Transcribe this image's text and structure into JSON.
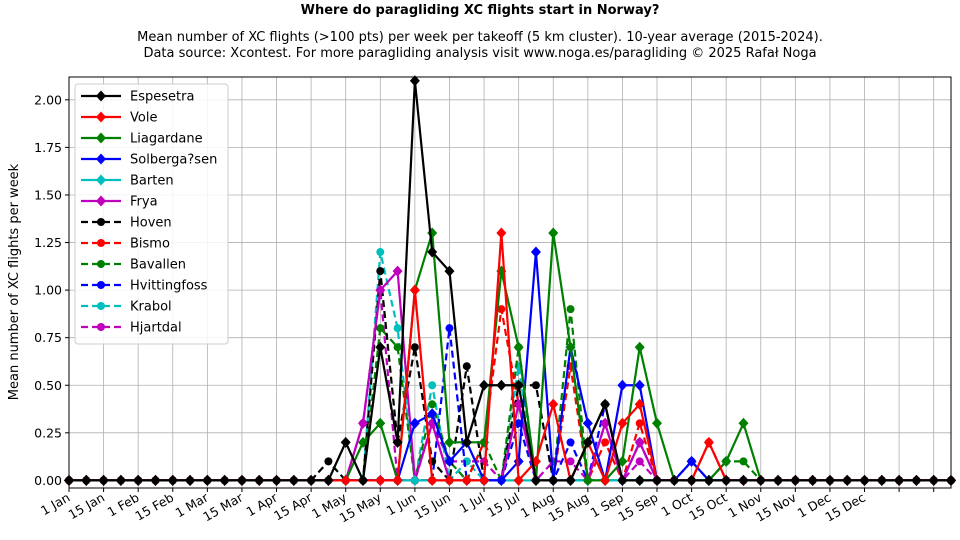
{
  "chart_data": {
    "type": "line",
    "title": "Where do paragliding XC flights start in Norway?",
    "subtitle_lines": [
      "Mean number of XC flights (>100 pts) per week per takeoff (5 km cluster). 10-year average (2015-2024).",
      "Data source: Xcontest. For more paragliding analysis visit www.noga.es/paragliding © 2025 Rafał Noga"
    ],
    "xlabel": "",
    "ylabel": "Mean number of XC flights per week",
    "xlim": [
      0,
      51
    ],
    "ylim": [
      -0.04,
      2.12
    ],
    "y_ticks": [
      0.0,
      0.25,
      0.5,
      0.75,
      1.0,
      1.25,
      1.5,
      1.75,
      2.0
    ],
    "y_tick_labels": [
      "0.00",
      "0.25",
      "0.50",
      "0.75",
      "1.00",
      "1.25",
      "1.50",
      "1.75",
      "2.00"
    ],
    "x_tick_positions": [
      0,
      2,
      4,
      6,
      8,
      10,
      12,
      14,
      16,
      18,
      20,
      22,
      24,
      26,
      28,
      30,
      32,
      34,
      36,
      38,
      40,
      42,
      44,
      46,
      48,
      50
    ],
    "x_tick_labels": [
      "1 Jan",
      "15 Jan",
      "1 Feb",
      "15 Feb",
      "1 Mar",
      "15 Mar",
      "1 Apr",
      "15 Apr",
      "1 May",
      "15 May",
      "1 Jun",
      "15 Jun",
      "1 Jul",
      "15 Jul",
      "1 Aug",
      "15 Aug",
      "1 Sep",
      "15 Sep",
      "1 Oct",
      "15 Oct",
      "1 Nov",
      "15 Nov",
      "1 Dec",
      "15 Dec",
      "",
      ""
    ],
    "x_weeks": [
      0,
      1,
      2,
      3,
      4,
      5,
      6,
      7,
      8,
      9,
      10,
      11,
      12,
      13,
      14,
      15,
      16,
      17,
      18,
      19,
      20,
      21,
      22,
      23,
      24,
      25,
      26,
      27,
      28,
      29,
      30,
      31,
      32,
      33,
      34,
      35,
      36,
      37,
      38,
      39,
      40,
      41,
      42,
      43,
      44,
      45,
      46,
      47,
      48,
      49,
      50,
      51
    ],
    "grid": true,
    "legend_position": "top-left",
    "series": [
      {
        "name": "Espesetra",
        "color": "#000000",
        "style": "solid",
        "marker": "diamond",
        "values": [
          0,
          0,
          0,
          0,
          0,
          0,
          0,
          0,
          0,
          0,
          0,
          0,
          0,
          0,
          0,
          0,
          0.2,
          0,
          0.7,
          0.2,
          2.1,
          1.2,
          1.1,
          0.2,
          0.5,
          0.5,
          0.5,
          0,
          0,
          0,
          0.2,
          0.4,
          0,
          0,
          0,
          0,
          0,
          0,
          0,
          0,
          0,
          0,
          0,
          0,
          0,
          0,
          0,
          0,
          0,
          0,
          0,
          0
        ]
      },
      {
        "name": "Vole",
        "color": "#ff0000",
        "style": "solid",
        "marker": "diamond",
        "values": [
          0,
          0,
          0,
          0,
          0,
          0,
          0,
          0,
          0,
          0,
          0,
          0,
          0,
          0,
          0,
          0,
          0,
          0,
          0,
          0,
          1.0,
          0,
          0,
          0,
          0,
          1.3,
          0,
          0.1,
          0.4,
          0,
          0.2,
          0,
          0.3,
          0.4,
          0,
          0,
          0,
          0.2,
          0,
          0,
          0,
          0,
          0,
          0,
          0,
          0,
          0,
          0,
          0,
          0,
          0,
          0
        ]
      },
      {
        "name": "Liagardane",
        "color": "#008000",
        "style": "solid",
        "marker": "diamond",
        "values": [
          0,
          0,
          0,
          0,
          0,
          0,
          0,
          0,
          0,
          0,
          0,
          0,
          0,
          0,
          0,
          0,
          0,
          0.2,
          0.3,
          0,
          1.0,
          1.3,
          0.2,
          0.2,
          0.2,
          1.1,
          0.7,
          0,
          1.3,
          0.7,
          0,
          0,
          0.1,
          0.7,
          0.3,
          0,
          0,
          0,
          0.1,
          0.3,
          0,
          0,
          0,
          0,
          0,
          0,
          0,
          0,
          0,
          0,
          0,
          0
        ]
      },
      {
        "name": "Solberga?sen",
        "color": "#0000ff",
        "style": "solid",
        "marker": "diamond",
        "values": [
          0,
          0,
          0,
          0,
          0,
          0,
          0,
          0,
          0,
          0,
          0,
          0,
          0,
          0,
          0,
          0,
          0,
          0,
          0,
          0,
          0.3,
          0.35,
          0.1,
          0.2,
          0,
          0,
          0.1,
          1.2,
          0,
          0.7,
          0.3,
          0,
          0.5,
          0.5,
          0,
          0,
          0.1,
          0,
          0,
          0,
          0,
          0,
          0,
          0,
          0,
          0,
          0,
          0,
          0,
          0,
          0,
          0
        ]
      },
      {
        "name": "Barten",
        "color": "#00bfbf",
        "style": "solid",
        "marker": "diamond",
        "values": [
          0,
          0,
          0,
          0,
          0,
          0,
          0,
          0,
          0,
          0,
          0,
          0,
          0,
          0,
          0,
          0,
          0,
          0,
          0,
          0,
          0,
          0,
          0,
          0,
          0,
          0,
          0,
          0,
          0,
          0,
          0,
          0,
          0,
          0,
          0,
          0,
          0,
          0,
          0,
          0,
          0,
          0,
          0,
          0,
          0,
          0,
          0,
          0,
          0,
          0,
          0,
          0
        ]
      },
      {
        "name": "Frya",
        "color": "#bf00bf",
        "style": "solid",
        "marker": "diamond",
        "values": [
          0,
          0,
          0,
          0,
          0,
          0,
          0,
          0,
          0,
          0,
          0,
          0,
          0,
          0,
          0,
          0,
          0,
          0.3,
          1.0,
          1.1,
          0,
          0.3,
          0,
          0,
          0,
          0,
          0.4,
          0,
          0,
          0,
          0,
          0.3,
          0,
          0.2,
          0,
          0,
          0,
          0,
          0,
          0,
          0,
          0,
          0,
          0,
          0,
          0,
          0,
          0,
          0,
          0,
          0,
          0
        ]
      },
      {
        "name": "Hoven",
        "color": "#000000",
        "style": "dashed",
        "marker": "circle",
        "values": [
          0,
          0,
          0,
          0,
          0,
          0,
          0,
          0,
          0,
          0,
          0,
          0,
          0,
          0,
          0,
          0.1,
          0,
          0,
          1.1,
          0.2,
          0.7,
          0.1,
          0,
          0.6,
          0,
          0,
          0.5,
          0.5,
          0,
          0,
          0.2,
          0.4,
          0,
          0,
          0,
          0,
          0,
          0,
          0,
          0,
          0,
          0,
          0,
          0,
          0,
          0,
          0,
          0,
          0,
          0,
          0,
          0
        ]
      },
      {
        "name": "Bismo",
        "color": "#ff0000",
        "style": "dashed",
        "marker": "circle",
        "values": [
          0,
          0,
          0,
          0,
          0,
          0,
          0,
          0,
          0,
          0,
          0,
          0,
          0,
          0,
          0,
          0,
          0,
          0,
          0,
          0,
          0,
          0,
          0,
          0,
          0.2,
          0.9,
          0.4,
          0,
          0,
          0.6,
          0,
          0.2,
          0,
          0.3,
          0,
          0,
          0,
          0.2,
          0,
          0,
          0,
          0,
          0,
          0,
          0,
          0,
          0,
          0,
          0,
          0,
          0,
          0
        ]
      },
      {
        "name": "Bavallen",
        "color": "#008000",
        "style": "dashed",
        "marker": "circle",
        "values": [
          0,
          0,
          0,
          0,
          0,
          0,
          0,
          0,
          0,
          0,
          0,
          0,
          0,
          0,
          0,
          0,
          0,
          0,
          0.8,
          0.7,
          0,
          0.4,
          0.1,
          0,
          0.2,
          0,
          0.7,
          0,
          0,
          0.9,
          0,
          0,
          0,
          0,
          0,
          0,
          0,
          0,
          0.1,
          0.1,
          0,
          0,
          0,
          0,
          0,
          0,
          0,
          0,
          0,
          0,
          0,
          0
        ]
      },
      {
        "name": "Hvittingfoss",
        "color": "#0000ff",
        "style": "dashed",
        "marker": "circle",
        "values": [
          0,
          0,
          0,
          0,
          0,
          0,
          0,
          0,
          0,
          0,
          0,
          0,
          0,
          0,
          0,
          0,
          0,
          0,
          0,
          0,
          0,
          0,
          0.8,
          0,
          0,
          0,
          0.3,
          0,
          0,
          0.2,
          0,
          0.4,
          0,
          0.2,
          0,
          0,
          0.1,
          0,
          0,
          0,
          0,
          0,
          0,
          0,
          0,
          0,
          0,
          0,
          0,
          0,
          0,
          0
        ]
      },
      {
        "name": "Krabol",
        "color": "#00bfbf",
        "style": "dashed",
        "marker": "circle",
        "values": [
          0,
          0,
          0,
          0,
          0,
          0,
          0,
          0,
          0,
          0,
          0,
          0,
          0,
          0,
          0,
          0,
          0,
          0,
          1.2,
          0.8,
          0,
          0.5,
          0,
          0.1,
          0,
          0,
          0.6,
          0,
          0,
          0,
          0,
          0,
          0,
          0,
          0,
          0,
          0,
          0,
          0,
          0,
          0,
          0,
          0,
          0,
          0,
          0,
          0,
          0,
          0,
          0,
          0,
          0
        ]
      },
      {
        "name": "Hjartdal",
        "color": "#bf00bf",
        "style": "dashed",
        "marker": "circle",
        "values": [
          0,
          0,
          0,
          0,
          0,
          0,
          0,
          0,
          0,
          0,
          0,
          0,
          0,
          0,
          0,
          0,
          0,
          0.3,
          1.0,
          0,
          0,
          0.3,
          0.1,
          0.1,
          0.1,
          0,
          0.4,
          0,
          0.1,
          0.1,
          0,
          0.3,
          0,
          0.1,
          0,
          0,
          0,
          0,
          0,
          0,
          0,
          0,
          0,
          0,
          0,
          0,
          0,
          0,
          0,
          0,
          0,
          0
        ]
      }
    ]
  }
}
